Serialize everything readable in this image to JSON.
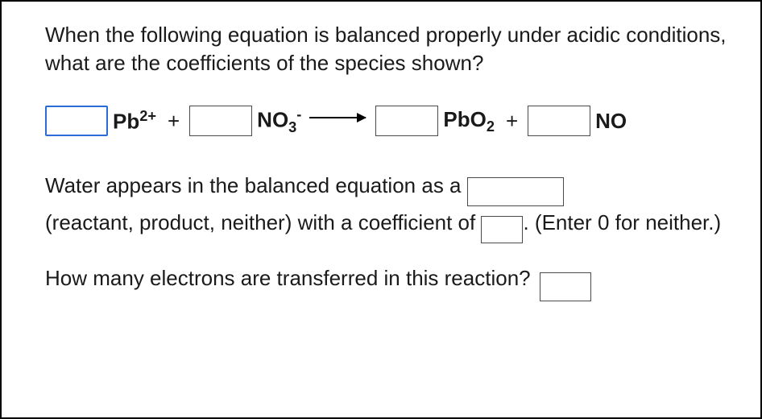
{
  "question": {
    "prompt": "When the following equation is balanced properly under acidic conditions, what are the coefficients of the species shown?"
  },
  "equation": {
    "species1_base": "Pb",
    "species1_sup": "2+",
    "plus1": "+",
    "species2_base": "NO",
    "species2_sub": "3",
    "species2_sup": "-",
    "species3_base": "PbO",
    "species3_sub": "2",
    "plus2": "+",
    "species4_base": "NO"
  },
  "water": {
    "line1_a": "Water appears in the balanced equation as a ",
    "line2_a": "(reactant, product, neither) with a coefficient of ",
    "line2_b": ". (Enter 0 for neither.)"
  },
  "electrons": {
    "prompt": "How many electrons are transferred in this reaction?"
  },
  "colors": {
    "focus_border": "#2a6cd6",
    "border": "#4a4a4a",
    "text": "#1a1a1a",
    "background": "#ffffff"
  }
}
